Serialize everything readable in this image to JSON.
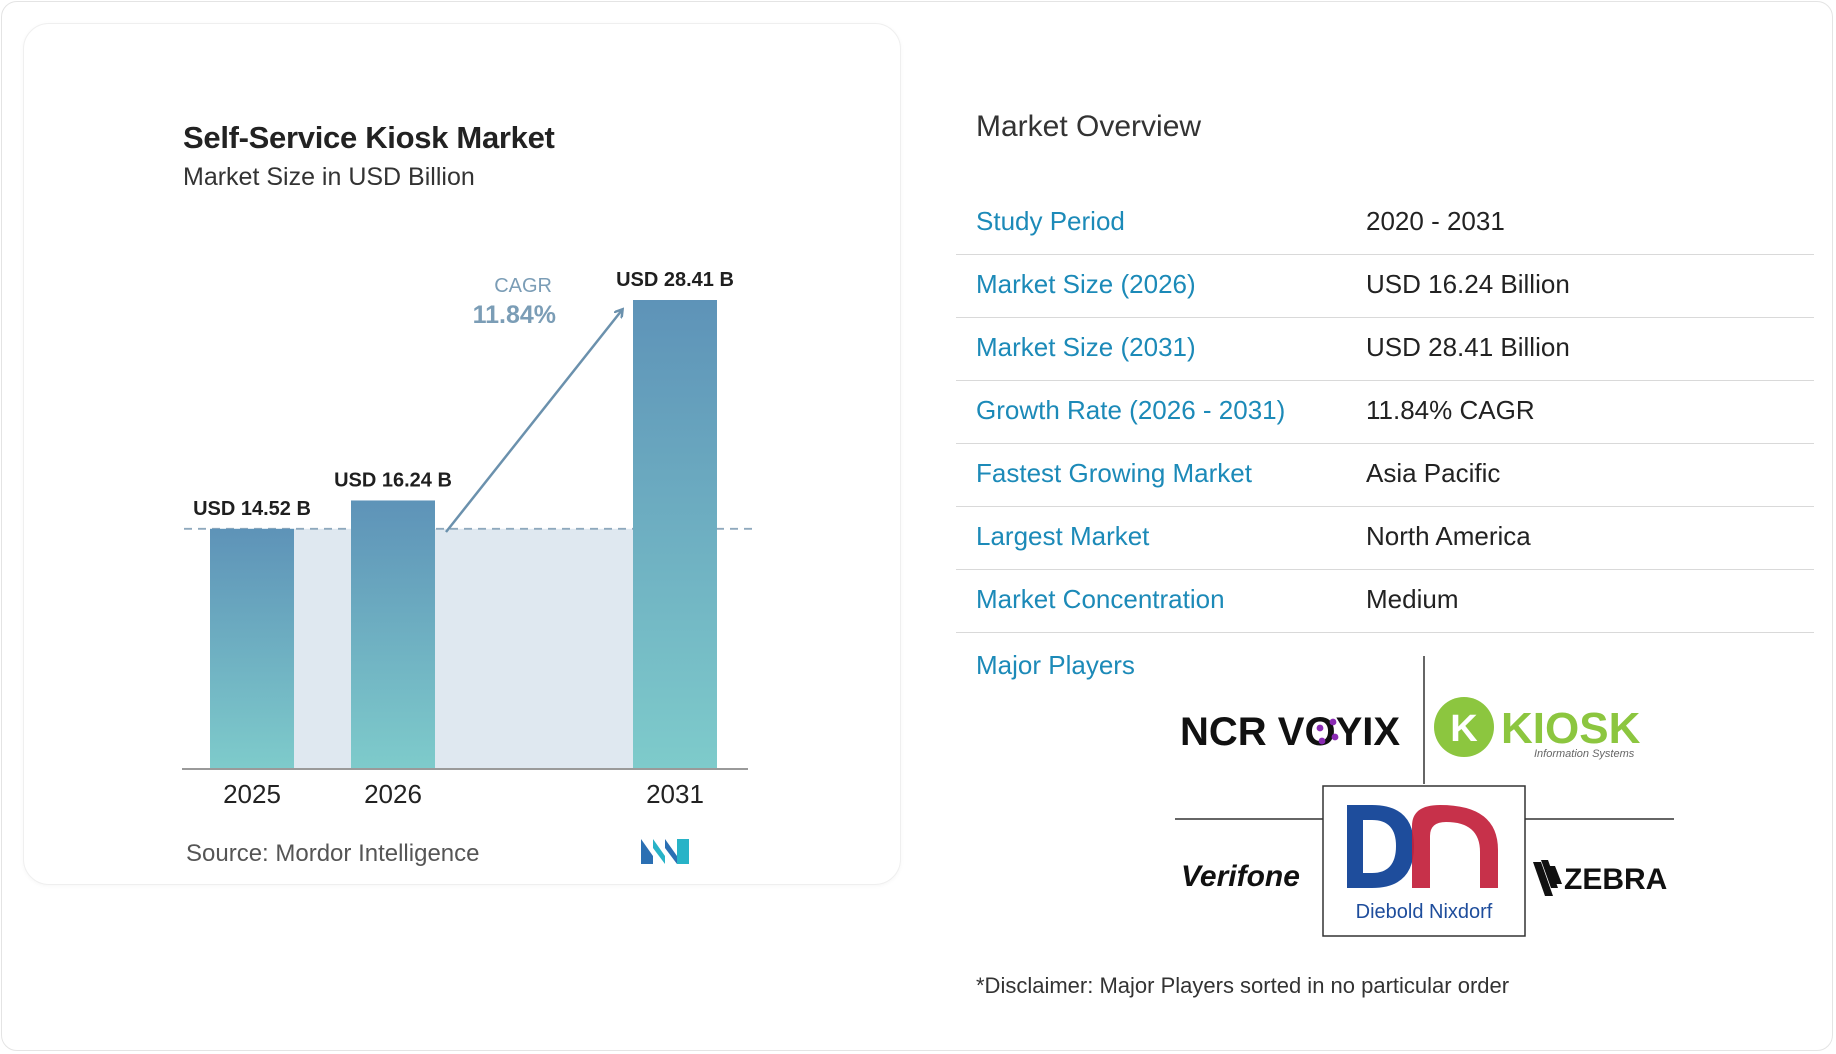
{
  "chart_data": {
    "type": "bar",
    "title": "Self-Service Kiosk Market",
    "subtitle": "Market Size in USD Billion",
    "categories": [
      "2025",
      "2026",
      "2031"
    ],
    "values": [
      14.52,
      16.24,
      28.41
    ],
    "value_labels": [
      "USD 14.52 B",
      "USD 16.24 B",
      "USD 28.41 B"
    ],
    "ylim": [
      0,
      28.41
    ],
    "xlabel": "",
    "ylabel": "",
    "cagr_label": "CAGR",
    "cagr_value": "11.84%",
    "colors": {
      "bar_top": "#5e93b8",
      "bar_bottom": "#7ecbcb",
      "band": "#dfe8f0",
      "arrow": "#6b91ad",
      "cagr_text": "#7b9db6"
    }
  },
  "source": "Source:  Mordor Intelligence",
  "overview": {
    "title": "Market Overview",
    "rows": [
      {
        "key": "Study Period",
        "value": "2020 - 2031"
      },
      {
        "key": "Market Size (2026)",
        "value": "USD 16.24 Billion"
      },
      {
        "key": "Market Size (2031)",
        "value": "USD 28.41 Billion"
      },
      {
        "key": "Growth Rate (2026 - 2031)",
        "value": "11.84% CAGR"
      },
      {
        "key": "Fastest Growing Market",
        "value": "Asia Pacific"
      },
      {
        "key": "Largest Market",
        "value": "North America"
      },
      {
        "key": "Market Concentration",
        "value": "Medium"
      }
    ],
    "major_players_label": "Major Players",
    "players": {
      "ncr": "NCR VOYIX",
      "kiosk": "KIOSK",
      "kiosk_sub": "Information Systems",
      "verifone": "Verifone",
      "diebold": "Diebold Nixdorf",
      "zebra": "ZEBRA"
    },
    "disclaimer": "*Disclaimer: Major Players sorted in no particular order"
  }
}
